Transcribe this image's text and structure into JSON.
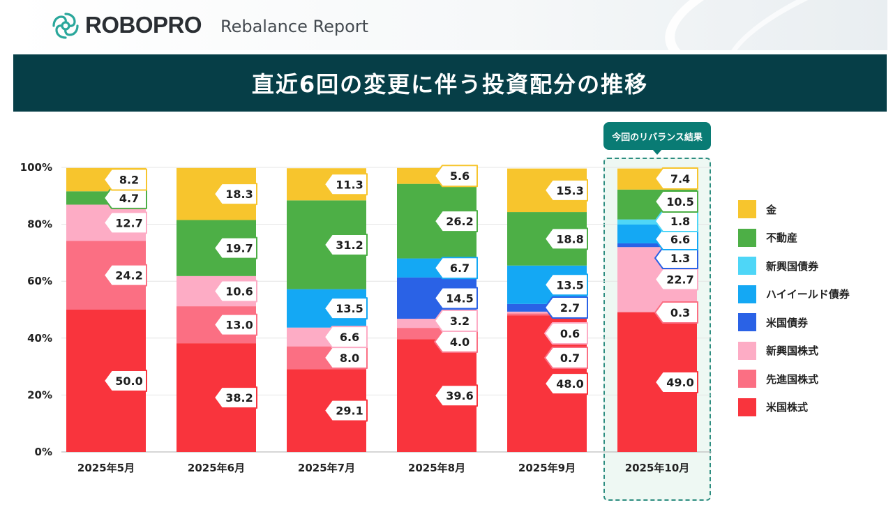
{
  "header": {
    "brand": "ROBOPRO",
    "report_label": "Rebalance Report",
    "title": "直近6回の変更に伴う投資配分の推移",
    "current_badge": "今回のリバランス結果"
  },
  "colors": {
    "banner": "#063e47",
    "badge": "#097b74",
    "logo": "#2aa79b"
  },
  "chart_data": {
    "type": "bar",
    "stacked": true,
    "categories": [
      "2025年5月",
      "2025年6月",
      "2025年7月",
      "2025年8月",
      "2025年9月",
      "2025年10月"
    ],
    "y_tick_labels": [
      "0%",
      "20%",
      "40%",
      "60%",
      "80%",
      "100%"
    ],
    "ylim": [
      0,
      100
    ],
    "highlighted_category": "2025年10月",
    "series": [
      {
        "name": "米国株式",
        "color": "#f9343d",
        "values": [
          50.0,
          38.2,
          29.1,
          39.6,
          48.0,
          49.0
        ]
      },
      {
        "name": "先進国株式",
        "color": "#fb6f83",
        "values": [
          24.2,
          13.0,
          8.0,
          4.0,
          0.7,
          0.3
        ]
      },
      {
        "name": "新興国株式",
        "color": "#fdacc5",
        "values": [
          12.7,
          10.6,
          6.6,
          3.2,
          0.6,
          22.7
        ]
      },
      {
        "name": "米国債券",
        "color": "#2a62e6",
        "values": [
          0,
          0,
          0,
          14.5,
          2.7,
          1.3
        ]
      },
      {
        "name": "ハイイールド債券",
        "color": "#14a8f4",
        "values": [
          0,
          0,
          13.5,
          6.7,
          13.5,
          6.6
        ]
      },
      {
        "name": "新興国債券",
        "color": "#4ed6f7",
        "values": [
          0,
          0,
          0,
          0,
          0,
          1.8
        ]
      },
      {
        "name": "不動産",
        "color": "#4daf46",
        "values": [
          4.7,
          19.7,
          31.2,
          26.2,
          18.8,
          10.5
        ]
      },
      {
        "name": "金",
        "color": "#f7c52d",
        "values": [
          8.2,
          18.3,
          11.3,
          5.6,
          15.3,
          7.4
        ]
      }
    ],
    "data_labels": [
      [
        "50.0",
        "24.2",
        "12.7",
        "",
        "",
        "",
        "4.7",
        "8.2"
      ],
      [
        "38.2",
        "13.0",
        "10.6",
        "",
        "",
        "",
        "19.7",
        "18.3"
      ],
      [
        "29.1",
        "8.0",
        "6.6",
        "",
        "13.5",
        "",
        "31.2",
        "11.3"
      ],
      [
        "39.6",
        "4.0",
        "3.2",
        "14.5",
        "6.7",
        "",
        "26.2",
        "5.6"
      ],
      [
        "48.0",
        "0.7",
        "0.6",
        "2.7",
        "13.5",
        "",
        "18.8",
        "15.3"
      ],
      [
        "49.0",
        "0.3",
        "22.7",
        "1.3",
        "6.6",
        "1.8",
        "10.5",
        "7.4"
      ]
    ],
    "legend_order": [
      "金",
      "不動産",
      "新興国債券",
      "ハイイールド債券",
      "米国債券",
      "新興国株式",
      "先進国株式",
      "米国株式"
    ],
    "legend_position": "right"
  }
}
